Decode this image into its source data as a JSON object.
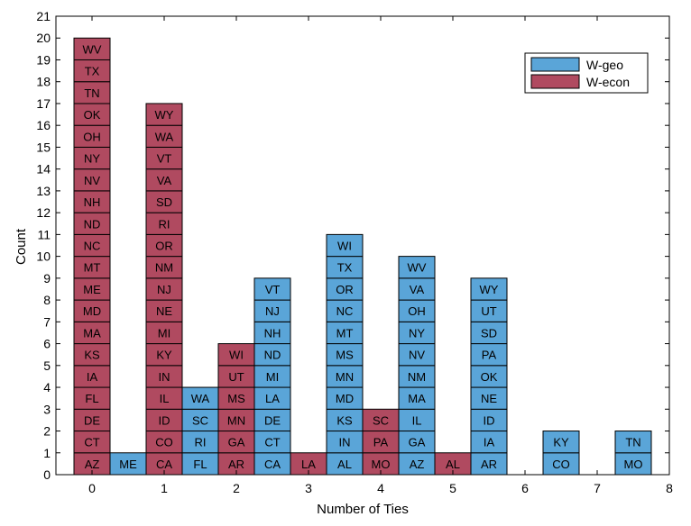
{
  "chart_data": {
    "type": "bar",
    "stacked": true,
    "title": "",
    "xlabel": "Number of Ties",
    "ylabel": "Count",
    "xlim": [
      -0.5,
      8
    ],
    "ylim": [
      0,
      21
    ],
    "x_ticks": [
      "0",
      "1",
      "2",
      "3",
      "4",
      "5",
      "6",
      "7",
      "8"
    ],
    "y_ticks": [
      "0",
      "1",
      "2",
      "3",
      "4",
      "5",
      "6",
      "7",
      "8",
      "9",
      "10",
      "11",
      "12",
      "13",
      "14",
      "15",
      "16",
      "17",
      "18",
      "19",
      "20",
      "21"
    ],
    "grid": false,
    "legend_position": "top-right",
    "series": [
      {
        "name": "W-geo",
        "color": "#5aa5d8"
      },
      {
        "name": "W-econ",
        "color": "#b04a60"
      }
    ],
    "bars": [
      {
        "x": 0,
        "series": "W-econ",
        "count": 20,
        "labels": [
          "AZ",
          "CT",
          "DE",
          "FL",
          "IA",
          "KS",
          "MA",
          "MD",
          "ME",
          "MT",
          "NC",
          "ND",
          "NH",
          "NV",
          "NY",
          "OH",
          "OK",
          "TN",
          "TX",
          "WV"
        ]
      },
      {
        "x": 0.5,
        "series": "W-geo",
        "count": 1,
        "labels": [
          "ME"
        ]
      },
      {
        "x": 1,
        "series": "W-econ",
        "count": 17,
        "labels": [
          "CA",
          "CO",
          "ID",
          "IL",
          "IN",
          "KY",
          "MI",
          "NE",
          "NJ",
          "NM",
          "OR",
          "RI",
          "SD",
          "VA",
          "VT",
          "WA",
          "WY"
        ]
      },
      {
        "x": 1.5,
        "series": "W-geo",
        "count": 4,
        "labels": [
          "FL",
          "RI",
          "SC",
          "WA"
        ]
      },
      {
        "x": 2,
        "series": "W-econ",
        "count": 6,
        "labels": [
          "AR",
          "GA",
          "MN",
          "MS",
          "UT",
          "WI"
        ]
      },
      {
        "x": 2.5,
        "series": "W-geo",
        "count": 9,
        "labels": [
          "CA",
          "CT",
          "DE",
          "LA",
          "MI",
          "ND",
          "NH",
          "NJ",
          "VT"
        ]
      },
      {
        "x": 3,
        "series": "W-econ",
        "count": 1,
        "labels": [
          "LA"
        ]
      },
      {
        "x": 3.5,
        "series": "W-geo",
        "count": 11,
        "labels": [
          "AL",
          "IN",
          "KS",
          "MD",
          "MN",
          "MS",
          "MT",
          "NC",
          "OR",
          "TX",
          "WI"
        ]
      },
      {
        "x": 4,
        "series": "W-econ",
        "count": 3,
        "labels": [
          "MO",
          "PA",
          "SC"
        ]
      },
      {
        "x": 4.5,
        "series": "W-geo",
        "count": 10,
        "labels": [
          "AZ",
          "GA",
          "IL",
          "MA",
          "NM",
          "NV",
          "NY",
          "OH",
          "VA",
          "WV"
        ]
      },
      {
        "x": 5,
        "series": "W-econ",
        "count": 1,
        "labels": [
          "AL"
        ]
      },
      {
        "x": 5.5,
        "series": "W-geo",
        "count": 9,
        "labels": [
          "AR",
          "IA",
          "ID",
          "NE",
          "OK",
          "PA",
          "SD",
          "UT",
          "WY"
        ]
      },
      {
        "x": 6.5,
        "series": "W-geo",
        "count": 2,
        "labels": [
          "CO",
          "KY"
        ]
      },
      {
        "x": 7.5,
        "series": "W-geo",
        "count": 2,
        "labels": [
          "MO",
          "TN"
        ]
      }
    ]
  }
}
